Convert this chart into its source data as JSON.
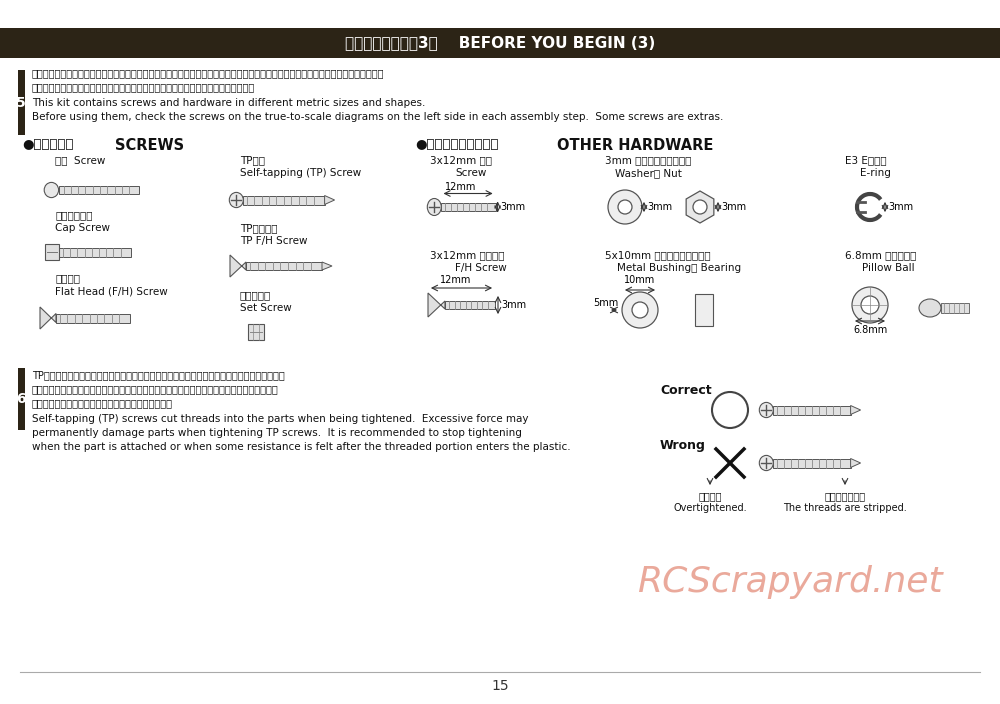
{
  "title_jp": "組立て前の注意（3）",
  "title_en": "BEFORE YOU BEGIN (3)",
  "title_bg": "#2c2416",
  "title_fg": "#ffffff",
  "page_bg": "#ffffff",
  "page_number": "15",
  "watermark": "RCScrapyard.net",
  "watermark_color": "#e8a090",
  "section5_number": "5",
  "section5_jp1": "キットには、形や長さが違うビスや小物部品が多く入っています。説明書には原寨図がありますので確認してから組立ててください。",
  "section5_jp2": "また、ビス類は多めに入っているものもありますので、予備としてお使いください。",
  "section5_en1": "This kit contains screws and hardware in different metric sizes and shapes.",
  "section5_en2": "Before using them, check the screws on the true-to-scale diagrams on the left side in each assembly step.  Some screws are extras.",
  "screws_header_jp": "●ビスの種類",
  "screws_header_en": "SCREWS",
  "hardware_header_jp": "●小物部品のサイズ例",
  "hardware_header_en": "OTHER HARDWARE",
  "screw1_jp": "ビス  Screw",
  "cap_screw_jp": "キャップビス",
  "cap_screw_en": "Cap Screw",
  "flat_screw_jp": "サラビス",
  "flat_screw_en": "Flat Head (F/H) Screw",
  "tp_screw_jp": "TPビス",
  "tp_screw_en": "Self-tapping (TP) Screw",
  "tp_flat_jp": "TPサラビス",
  "tp_flat_en": "TP F/H Screw",
  "set_screw_jp": "セットビス",
  "set_screw_en": "Set Screw",
  "hw1_jp": "3x12mm ビス",
  "hw1_en": "Screw",
  "hw2_jp": "3x12mm サラビス",
  "hw2_en": "F/H Screw",
  "hw3_jp": "3mm ワッシャー・ナット",
  "hw3_en": "Washer・ Nut",
  "hw4_jp": "E3 Eリング",
  "hw4_en": "E-ring",
  "hw5_jp": "5x10mm メタル・ベアリング",
  "hw5_en": "Metal Bushing・ Bearing",
  "hw6_jp": "6.8mm ピロボール",
  "hw6_en": "Pillow Ball",
  "section6_number": "6",
  "section6_jp1": "TPビスは、部品にネジを切りながらしめつけるビスです。しめこみが固い場合がありますが、",
  "section6_jp2": "部品が確実に固定されるまでしめこんでください。ただし、しめすぎるとネジがきかなくなり",
  "section6_jp3": "ますので、部品が変形するまでしめないでください。",
  "section6_en1": "Self-tapping (TP) screws cut threads into the parts when being tightened.  Excessive force may",
  "section6_en2": "permanently damage parts when tightening TP screws.  It is recommended to stop tightening",
  "section6_en3": "when the part is attached or when some resistance is felt after the threaded portion enters the plastic.",
  "correct_label": "Correct",
  "wrong_label": "Wrong",
  "overtightened_jp": "しめすぎ",
  "overtightened_en": "Overtightened.",
  "stripped_jp": "ビスがきかない",
  "stripped_en": "The threads are stripped.",
  "number_bg": "#2c2416",
  "number_fg": "#ffffff"
}
